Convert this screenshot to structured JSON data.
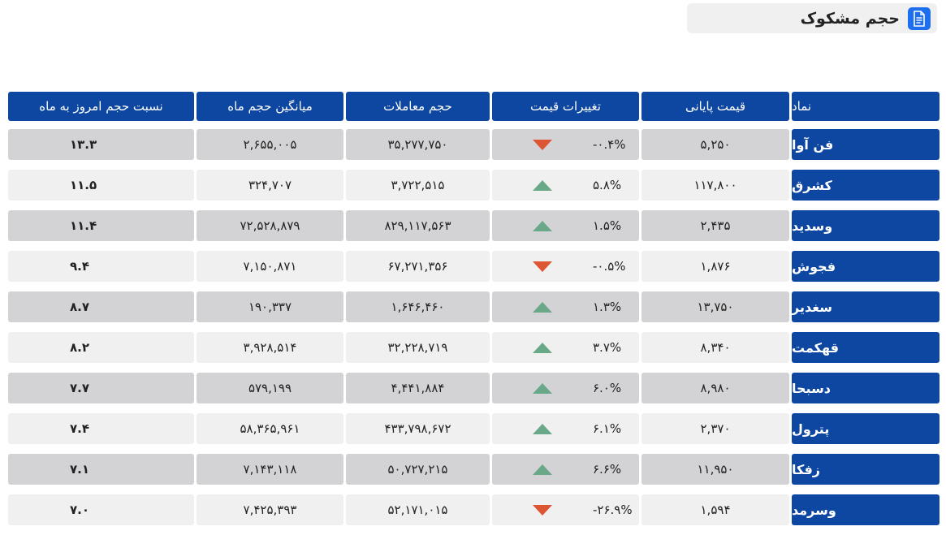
{
  "page": {
    "title": "حجم مشکوک",
    "title_icon": "document-icon"
  },
  "colors": {
    "header_bg": "#0d47a1",
    "up": "#6aa88a",
    "down": "#dd5533",
    "row_dark": "#d3d3d5",
    "row_light": "#f0f0f1"
  },
  "table": {
    "headers": {
      "symbol": "نماد",
      "close_price": "قیمت پایانی",
      "price_change": "تغییرات قیمت",
      "volume": "حجم معاملات",
      "avg_month_volume": "میانگین حجم ماه",
      "ratio": "نسبت حجم امروز به ماه"
    },
    "rows": [
      {
        "symbol": "فن آوا",
        "close": "۵,۲۵۰",
        "change": "-۰.۴%",
        "dir": "down",
        "volume": "۳۵,۲۷۷,۷۵۰",
        "avg": "۲,۶۵۵,۰۰۵",
        "ratio": "۱۳.۳"
      },
      {
        "symbol": "کشرق",
        "close": "۱۱۷,۸۰۰",
        "change": "۵.۸%",
        "dir": "up",
        "volume": "۳,۷۲۲,۵۱۵",
        "avg": "۳۲۴,۷۰۷",
        "ratio": "۱۱.۵"
      },
      {
        "symbol": "وسدید",
        "close": "۲,۴۳۵",
        "change": "۱.۵%",
        "dir": "up",
        "volume": "۸۲۹,۱۱۷,۵۶۳",
        "avg": "۷۲,۵۲۸,۸۷۹",
        "ratio": "۱۱.۴"
      },
      {
        "symbol": "فجوش",
        "close": "۱,۸۷۶",
        "change": "-۰.۵%",
        "dir": "down",
        "volume": "۶۷,۲۷۱,۳۵۶",
        "avg": "۷,۱۵۰,۸۷۱",
        "ratio": "۹.۴"
      },
      {
        "symbol": "سغدیر",
        "close": "۱۳,۷۵۰",
        "change": "۱.۳%",
        "dir": "up",
        "volume": "۱,۶۴۶,۴۶۰",
        "avg": "۱۹۰,۳۳۷",
        "ratio": "۸.۷"
      },
      {
        "symbol": "قهکمت",
        "close": "۸,۳۴۰",
        "change": "۳.۷%",
        "dir": "up",
        "volume": "۳۲,۲۲۸,۷۱۹",
        "avg": "۳,۹۲۸,۵۱۴",
        "ratio": "۸.۲"
      },
      {
        "symbol": "دسبحا",
        "close": "۸,۹۸۰",
        "change": "۶.۰%",
        "dir": "up",
        "volume": "۴,۴۴۱,۸۸۴",
        "avg": "۵۷۹,۱۹۹",
        "ratio": "۷.۷"
      },
      {
        "symbol": "پترول",
        "close": "۲,۳۷۰",
        "change": "۶.۱%",
        "dir": "up",
        "volume": "۴۳۳,۷۹۸,۶۷۲",
        "avg": "۵۸,۳۶۵,۹۶۱",
        "ratio": "۷.۴"
      },
      {
        "symbol": "زفکا",
        "close": "۱۱,۹۵۰",
        "change": "۶.۶%",
        "dir": "up",
        "volume": "۵۰,۷۲۷,۲۱۵",
        "avg": "۷,۱۴۳,۱۱۸",
        "ratio": "۷.۱"
      },
      {
        "symbol": "وسرمد",
        "close": "۱,۵۹۴",
        "change": "-۲۶.۹%",
        "dir": "down",
        "volume": "۵۲,۱۷۱,۰۱۵",
        "avg": "۷,۴۲۵,۳۹۳",
        "ratio": "۷.۰"
      }
    ]
  }
}
